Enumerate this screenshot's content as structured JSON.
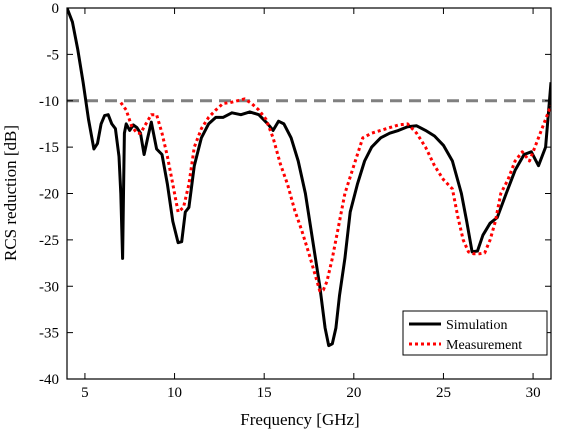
{
  "chart_data": {
    "type": "line",
    "title": "",
    "xlabel": "Frequency [GHz]",
    "ylabel": "RCS reduction [dB]",
    "xlim": [
      4,
      31
    ],
    "ylim": [
      -40,
      0
    ],
    "xticks": [
      5,
      10,
      15,
      20,
      25,
      30
    ],
    "yticks": [
      0,
      -5,
      -10,
      -15,
      -20,
      -25,
      -30,
      -35,
      -40
    ],
    "grid": false,
    "legend_position": "bottom-right",
    "reference_line": {
      "y": -10,
      "color": "#808080",
      "style": "dashed"
    },
    "series": [
      {
        "name": "Simulation",
        "color": "#000000",
        "style": "solid",
        "x": [
          4.0,
          4.3,
          4.6,
          4.9,
          5.2,
          5.5,
          5.7,
          5.9,
          6.1,
          6.3,
          6.5,
          6.7,
          6.9,
          7.0,
          7.1,
          7.15,
          7.2,
          7.3,
          7.5,
          7.7,
          7.9,
          8.1,
          8.3,
          8.5,
          8.7,
          9.0,
          9.3,
          9.6,
          9.9,
          10.2,
          10.4,
          10.6,
          10.8,
          11.1,
          11.5,
          11.9,
          12.3,
          12.7,
          13.2,
          13.7,
          14.2,
          14.7,
          15.2,
          15.5,
          15.8,
          16.1,
          16.5,
          16.9,
          17.3,
          17.7,
          18.1,
          18.4,
          18.6,
          18.8,
          19.0,
          19.2,
          19.5,
          19.8,
          20.2,
          20.6,
          21.0,
          21.5,
          22.0,
          22.5,
          23.0,
          23.5,
          24.0,
          24.5,
          25.0,
          25.5,
          26.0,
          26.3,
          26.6,
          26.9,
          27.2,
          27.6,
          28.0,
          28.5,
          29.0,
          29.5,
          29.9,
          30.3,
          30.7,
          31.0
        ],
        "y": [
          0,
          -1.5,
          -4.5,
          -8,
          -12,
          -15.2,
          -14.6,
          -12.5,
          -11.6,
          -11.5,
          -12.5,
          -13,
          -16,
          -20,
          -27,
          -20,
          -13.5,
          -12.5,
          -13.2,
          -12.6,
          -12.9,
          -13.5,
          -15.8,
          -14,
          -12.3,
          -15.2,
          -15.8,
          -19,
          -23,
          -25.3,
          -25.2,
          -22,
          -21.5,
          -17,
          -14,
          -12.5,
          -11.8,
          -11.8,
          -11.3,
          -11.5,
          -11.2,
          -11.5,
          -12.5,
          -13.2,
          -12.2,
          -12.5,
          -14,
          -16.5,
          -20,
          -25,
          -30,
          -34.5,
          -36.4,
          -36.2,
          -34.5,
          -31,
          -27,
          -22,
          -19,
          -16.5,
          -15,
          -14,
          -13.5,
          -13.2,
          -12.8,
          -12.7,
          -13.2,
          -13.8,
          -14.8,
          -16.5,
          -20,
          -23,
          -26.3,
          -26.2,
          -24.5,
          -23.2,
          -22.6,
          -20,
          -17.5,
          -15.8,
          -15.5,
          -17,
          -15,
          -8
        ]
      },
      {
        "name": "Measurement",
        "color": "#ff0000",
        "style": "dotted",
        "x": [
          7.0,
          7.3,
          7.6,
          7.9,
          8.1,
          8.4,
          8.7,
          9.0,
          9.3,
          9.6,
          9.9,
          10.2,
          10.5,
          10.8,
          11.1,
          11.5,
          11.9,
          12.3,
          12.7,
          13.1,
          13.5,
          13.9,
          14.3,
          14.7,
          15.1,
          15.5,
          15.9,
          16.3,
          16.7,
          17.1,
          17.5,
          17.8,
          18.1,
          18.3,
          18.5,
          18.8,
          19.1,
          19.5,
          20.0,
          20.5,
          21.0,
          21.5,
          22.0,
          22.5,
          23.0,
          23.5,
          24.0,
          24.5,
          25.0,
          25.5,
          25.8,
          26.1,
          26.4,
          26.7,
          27.0,
          27.3,
          27.6,
          27.9,
          28.2,
          28.6,
          29.0,
          29.4,
          29.8,
          30.2,
          30.6,
          31.0
        ],
        "y": [
          -10.2,
          -11,
          -12.7,
          -13.5,
          -13.5,
          -12.5,
          -11.5,
          -11.5,
          -13.5,
          -16,
          -19,
          -22,
          -21.5,
          -19,
          -15,
          -13,
          -11.8,
          -11,
          -10.3,
          -10.2,
          -10,
          -9.8,
          -10.3,
          -11,
          -12,
          -14,
          -16.8,
          -19,
          -21.8,
          -24,
          -26.5,
          -28.5,
          -30.5,
          -30.4,
          -29.5,
          -27,
          -24,
          -20,
          -17,
          -14,
          -13.5,
          -13.2,
          -12.9,
          -12.6,
          -12.5,
          -13.5,
          -15,
          -17,
          -18.5,
          -19.5,
          -22.5,
          -25,
          -26.3,
          -26.5,
          -26.5,
          -26.4,
          -25,
          -23,
          -20,
          -18.5,
          -16.5,
          -15.5,
          -16.5,
          -14.5,
          -12.5,
          -10.5
        ]
      }
    ]
  }
}
